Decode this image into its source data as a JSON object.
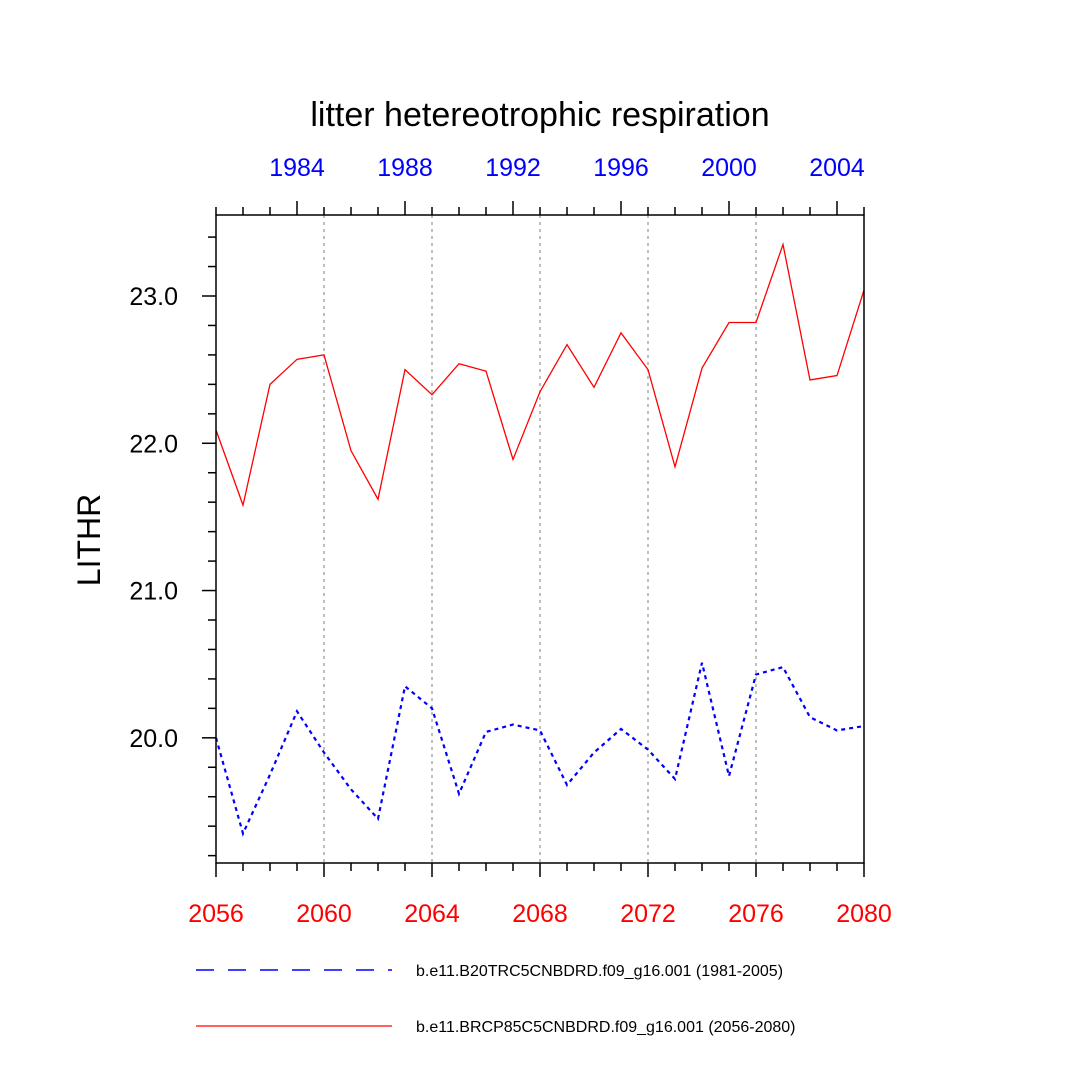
{
  "colors": {
    "background": "#ffffff",
    "historical": "#0000ff",
    "future": "#ff0000",
    "grid": "#aaaaaa",
    "axis": "#000000"
  },
  "chart_data": {
    "type": "line",
    "title": "litter hetereotrophic respiration",
    "ylabel": "LITHR",
    "ylim": [
      19.15,
      23.55
    ],
    "y_ticks": [
      "20.0",
      "21.0",
      "22.0",
      "23.0"
    ],
    "x_bottom": {
      "range": [
        2056,
        2080
      ],
      "ticks": [
        "2056",
        "2060",
        "2064",
        "2068",
        "2072",
        "2076",
        "2080"
      ],
      "color": "#ff0000"
    },
    "x_top": {
      "range": [
        1981,
        2005
      ],
      "ticks": [
        "1984",
        "1988",
        "1992",
        "1996",
        "2000",
        "2004"
      ],
      "color": "#0000ff"
    },
    "grid": "vertical dotted at bottom-axis major ticks",
    "legend_position": "bottom",
    "series": [
      {
        "name": "b.e11.B20TRC5CNBDRD.f09_g16.001 (1981-2005)",
        "axis": "top",
        "style": "dashed",
        "color": "#0000ff",
        "x": [
          1981,
          1982,
          1983,
          1984,
          1985,
          1986,
          1987,
          1988,
          1989,
          1990,
          1991,
          1992,
          1993,
          1994,
          1995,
          1996,
          1997,
          1998,
          1999,
          2000,
          2001,
          2002,
          2003,
          2004,
          2005
        ],
        "values": [
          20.0,
          19.35,
          19.75,
          20.18,
          19.9,
          19.65,
          19.45,
          20.35,
          20.2,
          19.62,
          20.04,
          20.09,
          20.05,
          19.68,
          19.9,
          20.06,
          19.92,
          19.72,
          20.51,
          19.74,
          20.43,
          20.48,
          20.14,
          20.05,
          20.08
        ]
      },
      {
        "name": "b.e11.BRCP85C5CNBDRD.f09_g16.001 (2056-2080)",
        "axis": "bottom",
        "style": "solid",
        "color": "#ff0000",
        "x": [
          2056,
          2057,
          2058,
          2059,
          2060,
          2061,
          2062,
          2063,
          2064,
          2065,
          2066,
          2067,
          2068,
          2069,
          2070,
          2071,
          2072,
          2073,
          2074,
          2075,
          2076,
          2077,
          2078,
          2079,
          2080
        ],
        "values": [
          22.09,
          21.58,
          22.4,
          22.57,
          22.6,
          21.95,
          21.62,
          22.5,
          22.33,
          22.54,
          22.49,
          21.89,
          22.35,
          22.67,
          22.38,
          22.75,
          22.5,
          21.84,
          22.51,
          22.82,
          22.82,
          23.35,
          22.43,
          22.46,
          23.04
        ]
      }
    ]
  }
}
